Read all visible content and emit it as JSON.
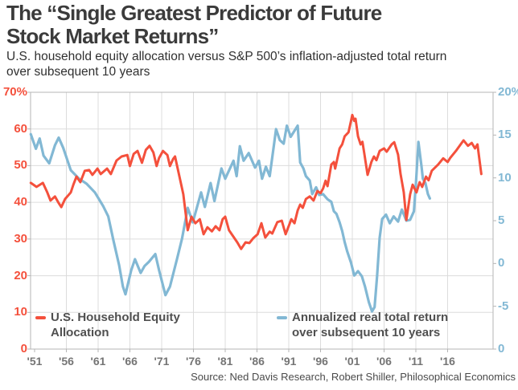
{
  "title": {
    "line1": "The “Single Greatest Predictor of Future",
    "line2": "Stock Market Returns”"
  },
  "subtitle": {
    "line1": "U.S. household equity allocation versus S&P 500’s inflation-adjusted total return",
    "line2": "over subsequent 10 years"
  },
  "source": "Source: Ned Davis Research, Robert Shiller, Philosophical Economics",
  "colors": {
    "allocation_red": "#f4503c",
    "return_blue": "#82b8d4",
    "grid": "#dcdcdc",
    "plot_border": "#b5b5b5",
    "x_label_gray": "#757575",
    "title_gray": "#3b3b3b",
    "legend_gray": "#4f4f4f"
  },
  "chart_data": {
    "type": "line",
    "title": "The “Single Greatest Predictor of Future Stock Market Returns”",
    "subtitle": "U.S. household equity allocation versus S&P 500’s inflation-adjusted total return over subsequent 10 years",
    "grid": true,
    "x_axis": {
      "tick_labels": [
        "'51",
        "'56",
        "'61",
        "'66",
        "'71",
        "'76",
        "'81",
        "'86",
        "'91",
        "'96",
        "'01",
        "'06",
        "'11",
        "'16"
      ],
      "tick_years": [
        1951,
        1956,
        1961,
        1966,
        1971,
        1976,
        1981,
        1986,
        1991,
        1996,
        2001,
        2006,
        2011,
        2016
      ]
    },
    "left_axis": {
      "labels": [
        "70%",
        "60",
        "50",
        "40",
        "30",
        "20",
        "10",
        "0"
      ],
      "min": 0,
      "max": 70,
      "color": "#f4503c"
    },
    "right_axis": {
      "labels": [
        "20%",
        "15",
        "10",
        "5",
        "0",
        "-5",
        "0"
      ],
      "min": -10,
      "max": 20,
      "color": "#82b8d4"
    },
    "legend": [
      {
        "line1": "U.S. Household Equity",
        "line2": "Allocation"
      },
      {
        "line1": "Annualized real total return",
        "line2": "over subsequent 10 years"
      }
    ],
    "series": [
      {
        "name": "Annualized real total return over subsequent 10 years",
        "axis": "right",
        "color": "#82b8d4",
        "stroke_width": 3.2,
        "points": [
          [
            1950.4,
            15.1
          ],
          [
            1951.2,
            13.4
          ],
          [
            1951.8,
            14.6
          ],
          [
            1952.4,
            12.6
          ],
          [
            1953.3,
            11.7
          ],
          [
            1954.2,
            13.8
          ],
          [
            1954.8,
            14.7
          ],
          [
            1955.5,
            13.5
          ],
          [
            1956.7,
            10.9
          ],
          [
            1958.0,
            9.9
          ],
          [
            1959.2,
            9.3
          ],
          [
            1960.5,
            8.3
          ],
          [
            1961.8,
            6.7
          ],
          [
            1962.6,
            5.5
          ],
          [
            1963.4,
            2.7
          ],
          [
            1964.3,
            -0.2
          ],
          [
            1964.9,
            -2.7
          ],
          [
            1965.3,
            -3.6
          ],
          [
            1966.2,
            -0.8
          ],
          [
            1966.8,
            0.5
          ],
          [
            1967.7,
            -1.1
          ],
          [
            1968.3,
            -0.3
          ],
          [
            1969.0,
            0.2
          ],
          [
            1970.0,
            1.1
          ],
          [
            1970.6,
            -0.8
          ],
          [
            1971.6,
            -3.7
          ],
          [
            1972.3,
            -2.7
          ],
          [
            1973.4,
            0.5
          ],
          [
            1974.2,
            2.9
          ],
          [
            1975.1,
            6.5
          ],
          [
            1975.9,
            4.8
          ],
          [
            1977.2,
            8.3
          ],
          [
            1977.8,
            6.6
          ],
          [
            1978.7,
            9.4
          ],
          [
            1979.3,
            7.3
          ],
          [
            1980.4,
            11.1
          ],
          [
            1981.0,
            9.9
          ],
          [
            1982.3,
            12.0
          ],
          [
            1982.8,
            10.2
          ],
          [
            1983.3,
            13.7
          ],
          [
            1983.9,
            12.0
          ],
          [
            1984.7,
            12.9
          ],
          [
            1985.7,
            11.2
          ],
          [
            1986.3,
            12.0
          ],
          [
            1986.8,
            9.9
          ],
          [
            1987.4,
            11.3
          ],
          [
            1988.0,
            10.2
          ],
          [
            1988.7,
            14.0
          ],
          [
            1989.0,
            15.7
          ],
          [
            1989.6,
            14.4
          ],
          [
            1990.2,
            14.0
          ],
          [
            1990.7,
            16.1
          ],
          [
            1991.3,
            14.8
          ],
          [
            1992.4,
            16.1
          ],
          [
            1992.8,
            11.8
          ],
          [
            1993.3,
            11.1
          ],
          [
            1993.7,
            10.2
          ],
          [
            1994.3,
            9.7
          ],
          [
            1994.7,
            8.1
          ],
          [
            1995.3,
            8.9
          ],
          [
            1995.8,
            8.0
          ],
          [
            1996.4,
            8.1
          ],
          [
            1997.1,
            7.5
          ],
          [
            1997.7,
            7.2
          ],
          [
            1998.1,
            6.1
          ],
          [
            1998.5,
            5.8
          ],
          [
            1999.0,
            4.8
          ],
          [
            1999.4,
            3.8
          ],
          [
            1999.8,
            2.5
          ],
          [
            2000.2,
            1.4
          ],
          [
            2000.8,
            0.1
          ],
          [
            2001.3,
            -1.4
          ],
          [
            2001.9,
            -0.9
          ],
          [
            2002.5,
            -1.5
          ],
          [
            2003.0,
            -2.7
          ],
          [
            2003.6,
            -4.5
          ],
          [
            2004.1,
            -5.6
          ],
          [
            2004.5,
            -5.1
          ],
          [
            2004.9,
            -1.5
          ],
          [
            2005.3,
            3.0
          ],
          [
            2005.7,
            5.2
          ],
          [
            2006.3,
            5.7
          ],
          [
            2006.9,
            4.7
          ],
          [
            2007.5,
            5.5
          ],
          [
            2008.2,
            4.9
          ],
          [
            2008.8,
            6.3
          ],
          [
            2009.5,
            5.0
          ],
          [
            2010.1,
            5.1
          ],
          [
            2010.7,
            6.1
          ],
          [
            2011.0,
            9.2
          ],
          [
            2011.4,
            14.2
          ],
          [
            2011.9,
            11.3
          ],
          [
            2012.1,
            9.9
          ],
          [
            2012.5,
            9.4
          ],
          [
            2012.9,
            8.1
          ],
          [
            2013.2,
            7.6
          ]
        ]
      },
      {
        "name": "U.S. Household Equity Allocation",
        "axis": "left",
        "color": "#f4503c",
        "stroke_width": 3,
        "points": [
          [
            1950.4,
            45.3
          ],
          [
            1951.3,
            44.2
          ],
          [
            1952.3,
            45.3
          ],
          [
            1953.0,
            42.7
          ],
          [
            1953.5,
            40.5
          ],
          [
            1954.2,
            41.6
          ],
          [
            1954.8,
            39.8
          ],
          [
            1955.2,
            38.7
          ],
          [
            1955.8,
            40.9
          ],
          [
            1956.7,
            42.7
          ],
          [
            1957.1,
            44.8
          ],
          [
            1957.6,
            47.0
          ],
          [
            1958.2,
            45.5
          ],
          [
            1958.9,
            48.6
          ],
          [
            1959.6,
            48.8
          ],
          [
            1960.1,
            47.5
          ],
          [
            1960.9,
            49.2
          ],
          [
            1961.4,
            47.7
          ],
          [
            1962.4,
            49.2
          ],
          [
            1963.0,
            47.7
          ],
          [
            1963.9,
            51.4
          ],
          [
            1964.7,
            52.5
          ],
          [
            1965.6,
            52.9
          ],
          [
            1966.0,
            49.9
          ],
          [
            1966.6,
            53.2
          ],
          [
            1967.2,
            54.0
          ],
          [
            1967.9,
            50.8
          ],
          [
            1968.5,
            54.3
          ],
          [
            1969.1,
            55.4
          ],
          [
            1969.7,
            53.6
          ],
          [
            1970.2,
            49.9
          ],
          [
            1970.6,
            52.1
          ],
          [
            1971.2,
            54.0
          ],
          [
            1971.9,
            52.9
          ],
          [
            1972.3,
            49.9
          ],
          [
            1972.8,
            51.8
          ],
          [
            1973.1,
            52.5
          ],
          [
            1973.8,
            47.0
          ],
          [
            1974.4,
            42.2
          ],
          [
            1975.1,
            32.4
          ],
          [
            1975.7,
            36.1
          ],
          [
            1976.3,
            34.3
          ],
          [
            1977.0,
            35.4
          ],
          [
            1977.6,
            31.3
          ],
          [
            1978.2,
            33.2
          ],
          [
            1978.9,
            32.1
          ],
          [
            1979.5,
            33.5
          ],
          [
            1980.1,
            32.4
          ],
          [
            1980.6,
            35.4
          ],
          [
            1981.0,
            36.1
          ],
          [
            1981.6,
            32.4
          ],
          [
            1982.3,
            30.6
          ],
          [
            1982.9,
            29.1
          ],
          [
            1983.5,
            27.3
          ],
          [
            1984.2,
            29.1
          ],
          [
            1984.8,
            28.9
          ],
          [
            1985.4,
            30.2
          ],
          [
            1986.1,
            31.3
          ],
          [
            1986.7,
            34.3
          ],
          [
            1987.3,
            30.4
          ],
          [
            1988.0,
            32.0
          ],
          [
            1988.4,
            31.5
          ],
          [
            1989.2,
            34.6
          ],
          [
            1989.9,
            35.0
          ],
          [
            1990.5,
            31.3
          ],
          [
            1991.4,
            35.4
          ],
          [
            1991.9,
            34.3
          ],
          [
            1992.4,
            37.8
          ],
          [
            1992.8,
            39.4
          ],
          [
            1993.2,
            38.5
          ],
          [
            1993.7,
            40.9
          ],
          [
            1994.3,
            41.6
          ],
          [
            1994.9,
            40.5
          ],
          [
            1995.5,
            43.1
          ],
          [
            1996.0,
            42.5
          ],
          [
            1996.4,
            43.8
          ],
          [
            1996.8,
            45.9
          ],
          [
            1997.1,
            44.4
          ],
          [
            1997.7,
            50.3
          ],
          [
            1998.1,
            51.0
          ],
          [
            1998.3,
            49.2
          ],
          [
            1999.0,
            54.7
          ],
          [
            1999.4,
            55.8
          ],
          [
            1999.8,
            58.0
          ],
          [
            2000.4,
            59.1
          ],
          [
            2001.0,
            63.8
          ],
          [
            2001.3,
            62.2
          ],
          [
            2001.5,
            62.8
          ],
          [
            2001.9,
            58.0
          ],
          [
            2002.3,
            55.8
          ],
          [
            2002.6,
            56.5
          ],
          [
            2002.9,
            53.2
          ],
          [
            2003.4,
            47.5
          ],
          [
            2004.0,
            51.0
          ],
          [
            2004.4,
            52.5
          ],
          [
            2004.8,
            51.5
          ],
          [
            2005.3,
            54.0
          ],
          [
            2006.0,
            54.7
          ],
          [
            2006.4,
            53.8
          ],
          [
            2007.2,
            55.8
          ],
          [
            2007.6,
            56.4
          ],
          [
            2008.2,
            53.0
          ],
          [
            2008.6,
            47.7
          ],
          [
            2009.1,
            42.7
          ],
          [
            2009.5,
            35.2
          ],
          [
            2010.1,
            42.2
          ],
          [
            2010.5,
            44.8
          ],
          [
            2011.1,
            42.7
          ],
          [
            2011.6,
            45.5
          ],
          [
            2012.0,
            44.2
          ],
          [
            2012.6,
            47.0
          ],
          [
            2013.0,
            46.0
          ],
          [
            2013.5,
            48.6
          ],
          [
            2014.5,
            50.3
          ],
          [
            2015.3,
            52.0
          ],
          [
            2016.0,
            51.0
          ],
          [
            2016.4,
            52.1
          ],
          [
            2017.3,
            54.0
          ],
          [
            2018.5,
            56.9
          ],
          [
            2019.2,
            55.4
          ],
          [
            2019.8,
            56.2
          ],
          [
            2020.3,
            54.7
          ],
          [
            2020.7,
            55.8
          ],
          [
            2021.3,
            47.7
          ]
        ]
      }
    ]
  }
}
